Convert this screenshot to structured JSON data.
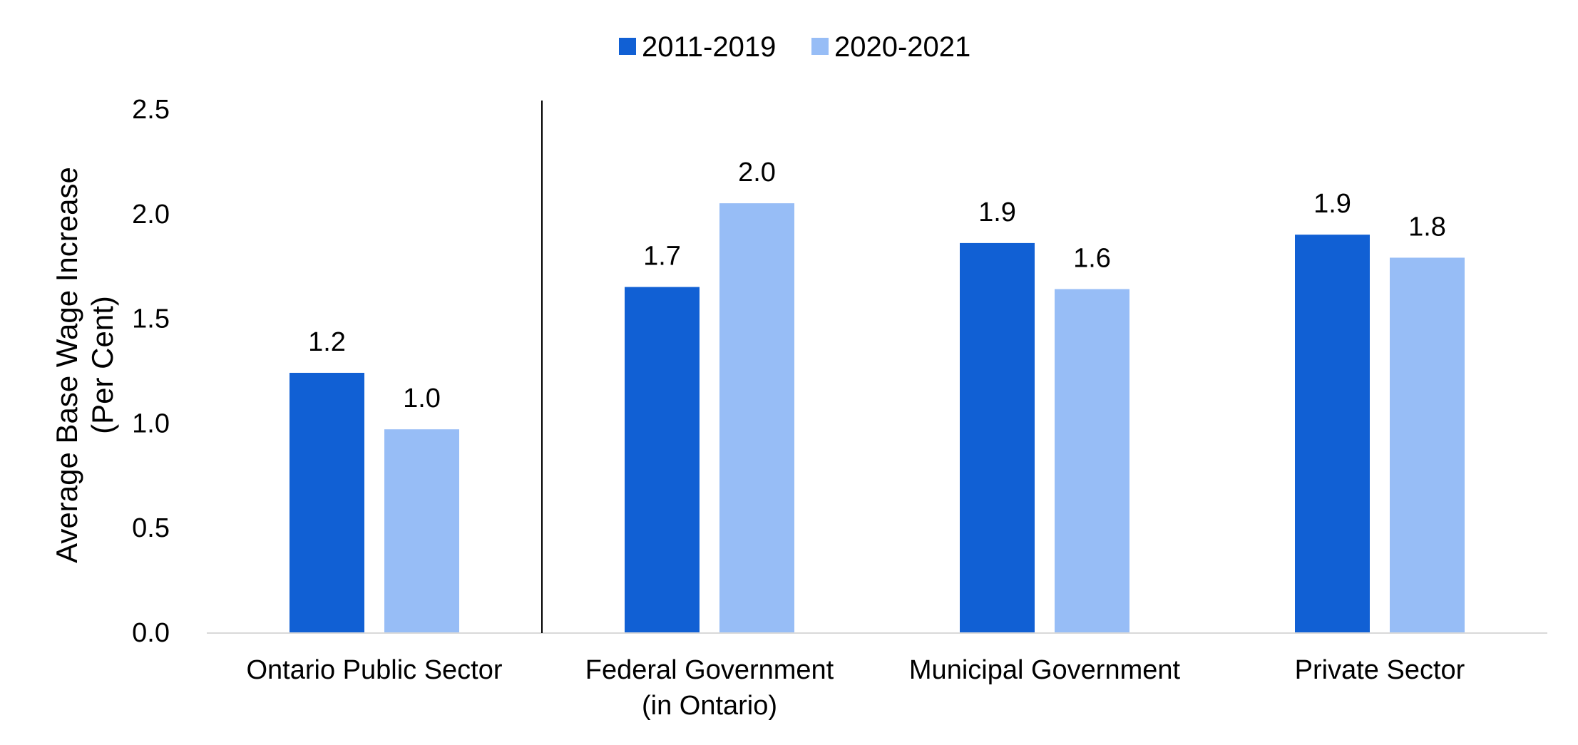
{
  "chart_data": {
    "type": "bar",
    "categories": [
      [
        "Ontario Public Sector"
      ],
      [
        "Federal Government",
        "(in Ontario)"
      ],
      [
        "Municipal Government"
      ],
      [
        "Private Sector"
      ]
    ],
    "series": [
      {
        "name": "2011-2019",
        "color": "#1160D4",
        "values": [
          1.24,
          1.65,
          1.86,
          1.9
        ],
        "labels": [
          "1.2",
          "1.7",
          "1.9",
          "1.9"
        ]
      },
      {
        "name": "2020-2021",
        "color": "#97BDF6",
        "values": [
          0.97,
          2.05,
          1.64,
          1.79
        ],
        "labels": [
          "1.0",
          "2.0",
          "1.6",
          "1.8"
        ]
      }
    ],
    "ylabel": [
      "Average Base Wage Increase",
      "(Per Cent)"
    ],
    "ylim": [
      0,
      2.5
    ],
    "yticks": [
      "0.0",
      "0.5",
      "1.0",
      "1.5",
      "2.0",
      "2.5"
    ],
    "legend_position": "top-center",
    "grid": false,
    "separator_after_category": 0
  }
}
